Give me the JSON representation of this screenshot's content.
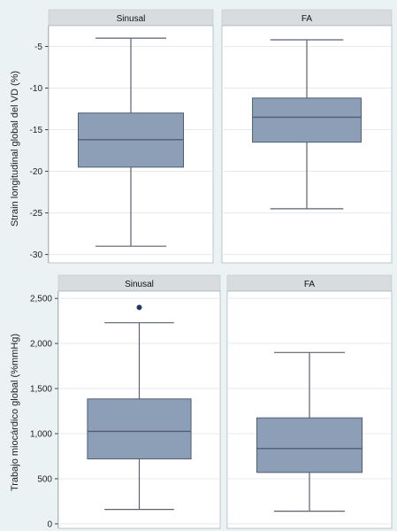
{
  "colors": {
    "background": "#eaf2f3",
    "panel": "#ffffff",
    "strip": "#d8dcde",
    "box_fill": "#8c9fb7",
    "box_stroke": "#4e5e74",
    "whisker": "#5a6270",
    "grid": "#e6e9ec",
    "outlier": "#1d3a63"
  },
  "chart_data": [
    {
      "type": "box",
      "ylabel": "Strain longitudinal global del VD (%)",
      "ylim": [
        -31,
        -2.5
      ],
      "yticks": [
        -5,
        -10,
        -15,
        -20,
        -25,
        -30
      ],
      "ytick_labels": [
        "-5",
        "-10",
        "-15",
        "-20",
        "-25",
        "-30"
      ],
      "grid": true,
      "panels": [
        {
          "name": "Sinusal",
          "min": -29,
          "q1": -19.5,
          "median": -16.2,
          "q3": -13,
          "max": -4,
          "outliers": []
        },
        {
          "name": "FA",
          "min": -24.5,
          "q1": -16.5,
          "median": -13.5,
          "q3": -11.2,
          "max": -4.2,
          "outliers": []
        }
      ]
    },
    {
      "type": "box",
      "ylabel": "Trabajo miocárdico global (%mmHg)",
      "ylim": [
        -50,
        2580
      ],
      "yticks": [
        0,
        500,
        1000,
        1500,
        2000,
        2500
      ],
      "ytick_labels": [
        "0",
        "500",
        "1,000",
        "1,500",
        "2,000",
        "2,500"
      ],
      "grid": true,
      "panels": [
        {
          "name": "Sinusal",
          "min": 160,
          "q1": 720,
          "median": 1025,
          "q3": 1385,
          "max": 2230,
          "outliers": [
            2400
          ]
        },
        {
          "name": "FA",
          "min": 140,
          "q1": 570,
          "median": 835,
          "q3": 1175,
          "max": 1900,
          "outliers": []
        }
      ]
    }
  ]
}
